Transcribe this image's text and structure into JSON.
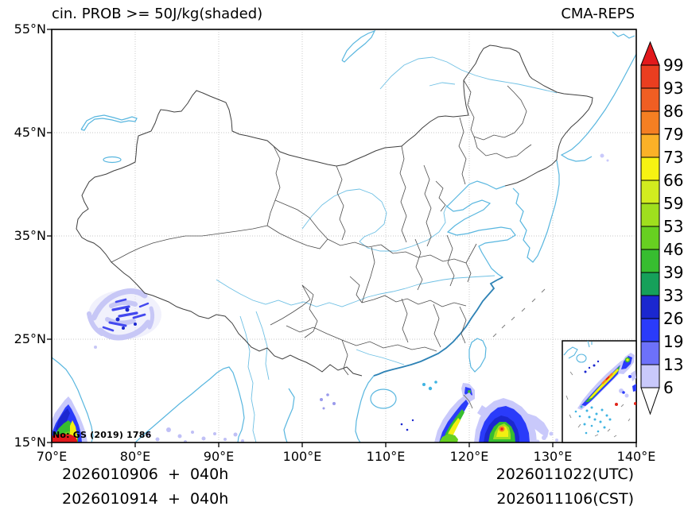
{
  "header": {
    "title": "cin. PROB >= 50J/kg(shaded)",
    "model_label": "CMA-REPS"
  },
  "axes": {
    "x_ticks": [
      {
        "label": "70°E",
        "deg": 70
      },
      {
        "label": "80°E",
        "deg": 80
      },
      {
        "label": "90°E",
        "deg": 90
      },
      {
        "label": "100°E",
        "deg": 100
      },
      {
        "label": "110°E",
        "deg": 110
      },
      {
        "label": "120°E",
        "deg": 120
      },
      {
        "label": "130°E",
        "deg": 130
      },
      {
        "label": "140°E",
        "deg": 140
      }
    ],
    "y_ticks": [
      {
        "label": "15°N",
        "deg": 15
      },
      {
        "label": "25°N",
        "deg": 25
      },
      {
        "label": "35°N",
        "deg": 35
      },
      {
        "label": "45°N",
        "deg": 45
      },
      {
        "label": "55°N",
        "deg": 55
      }
    ]
  },
  "colorbar": {
    "labels": [
      "99",
      "93",
      "86",
      "79",
      "73",
      "66",
      "59",
      "53",
      "46",
      "39",
      "33",
      "26",
      "19",
      "13",
      "6"
    ],
    "over_color": "#e2191c",
    "segment_colors": [
      "#ea3e20",
      "#f05e23",
      "#f57f22",
      "#fbb127",
      "#f7f312",
      "#d2ec1f",
      "#9fdf1e",
      "#67d021",
      "#37bd30",
      "#16a05a",
      "#1b27cf",
      "#2a3bfa",
      "#6d71fa",
      "#c9c9fb"
    ],
    "under_color": "#ffffff"
  },
  "footer": {
    "init_line_utc": "2026010906  +  040h",
    "init_line_cst": "2026010914  +  040h",
    "valid_utc": "2026011022(UTC)",
    "valid_cst": "2026011106(CST)"
  },
  "stamp": {
    "text": "No: GS (2019) 1786"
  },
  "map_style": {
    "coast_color": "#58b6df",
    "dense_coast_color": "#2e82b5",
    "border_color": "#474747",
    "grid_color": "#b5b5b5",
    "frame_color": "#000000"
  }
}
